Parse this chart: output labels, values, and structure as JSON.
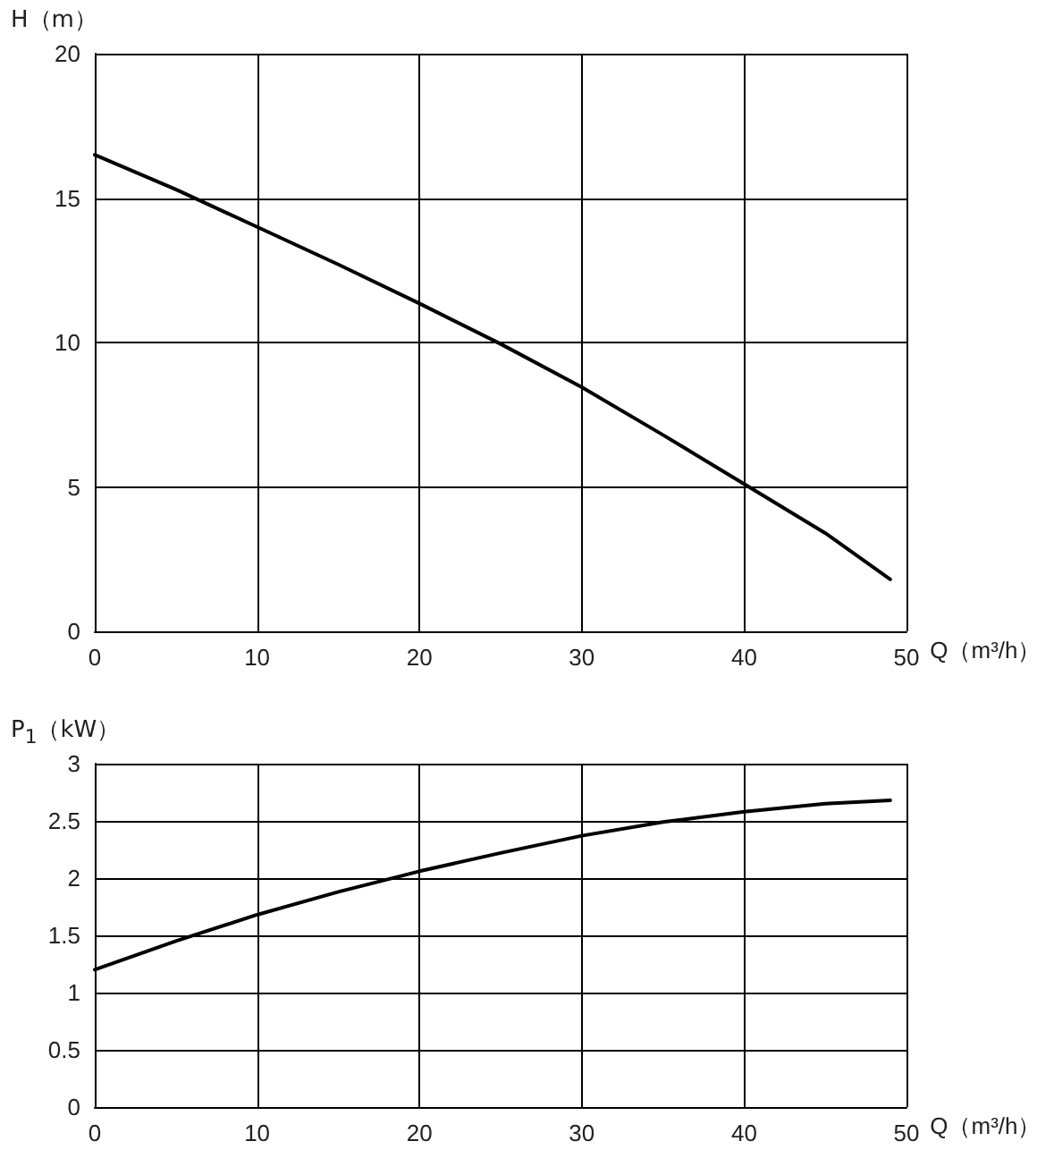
{
  "chart_data": [
    {
      "type": "line",
      "ylabel": "H（m）",
      "xlabel": "Q（m³/h）",
      "x": [
        0,
        5,
        10,
        15,
        20,
        25,
        30,
        35,
        40,
        45,
        49
      ],
      "series": [
        {
          "color": "#000000",
          "values": [
            16.5,
            15.3,
            14.0,
            12.7,
            11.35,
            9.95,
            8.45,
            6.8,
            5.1,
            3.4,
            1.8
          ]
        }
      ],
      "xlim": [
        0,
        50
      ],
      "xticks": [
        0,
        10,
        20,
        30,
        40,
        50
      ],
      "ylim": [
        0,
        20
      ],
      "yticks": [
        0,
        5,
        10,
        15,
        20
      ],
      "grid": true,
      "marker": "none",
      "line_style": "solid"
    },
    {
      "type": "line",
      "ylabel": "P$_{1}$（kW）",
      "xlabel": "Q（m³/h）",
      "x": [
        0,
        5,
        10,
        15,
        20,
        25,
        30,
        35,
        40,
        45,
        49
      ],
      "series": [
        {
          "color": "#000000",
          "values": [
            1.2,
            1.45,
            1.68,
            1.88,
            2.06,
            2.22,
            2.37,
            2.49,
            2.58,
            2.65,
            2.68
          ]
        }
      ],
      "xlim": [
        0,
        50
      ],
      "xticks": [
        0,
        10,
        20,
        30,
        40,
        50
      ],
      "ylim": [
        0,
        3
      ],
      "yticks": [
        0,
        0.5,
        1,
        1.5,
        2,
        2.5,
        3
      ],
      "grid": true,
      "marker": "none",
      "line_style": "solid"
    }
  ]
}
